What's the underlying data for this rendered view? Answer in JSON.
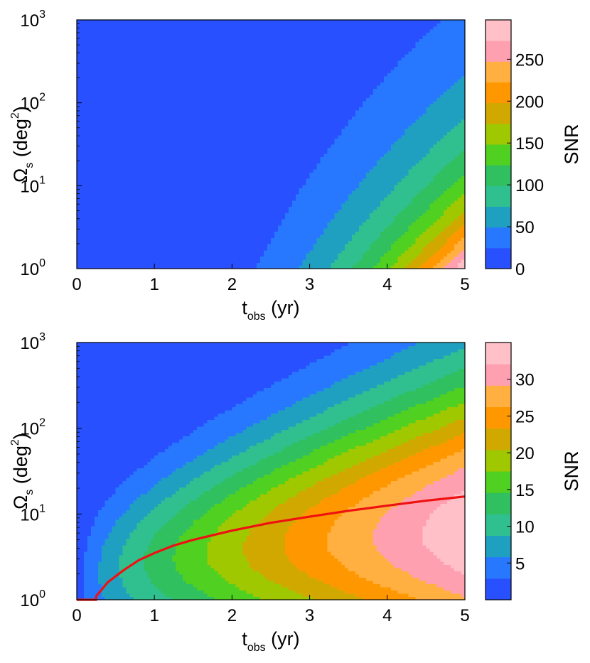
{
  "chart_data": [
    {
      "type": "heatmap",
      "title": "",
      "xlabel": {
        "main": "t",
        "sub": "obs",
        "unit": " (yr)"
      },
      "ylabel": {
        "symbol": "Ω",
        "sub": "s",
        "unit_pre": " (deg",
        "unit_sup": "2",
        "unit_post": ")"
      },
      "x_range": [
        0,
        5
      ],
      "y_range": [
        1,
        1000
      ],
      "y_scale": "log",
      "x_ticks": [
        "0",
        "1",
        "2",
        "3",
        "4",
        "5"
      ],
      "y_ticks": [
        {
          "base": "10",
          "exp": "0"
        },
        {
          "base": "10",
          "exp": "1"
        },
        {
          "base": "10",
          "exp": "2"
        },
        {
          "base": "10",
          "exp": "3"
        }
      ],
      "colorbar": {
        "label": "SNR",
        "min": 0,
        "max": 297,
        "ticks": [
          "0",
          "50",
          "100",
          "150",
          "200",
          "250"
        ],
        "tick_values": [
          0,
          50,
          100,
          150,
          200,
          250
        ]
      },
      "peak_snr": 297,
      "peak_location": {
        "t_obs": 5,
        "omega_s": 1
      },
      "colors": [
        "#2850ff",
        "#2878ff",
        "#20a0c0",
        "#30c090",
        "#30c060",
        "#50d020",
        "#a0c800",
        "#d0a800",
        "#ff9800",
        "#ffb040",
        "#ffa0b0",
        "#ffc0c8"
      ]
    },
    {
      "type": "heatmap",
      "title": "",
      "xlabel": {
        "main": "t",
        "sub": "obs",
        "unit": " (yr)"
      },
      "ylabel": {
        "symbol": "Ω",
        "sub": "s",
        "unit_pre": " (deg",
        "unit_sup": "2",
        "unit_post": ")"
      },
      "x_range": [
        0,
        5
      ],
      "y_range": [
        1,
        1000
      ],
      "y_scale": "log",
      "x_ticks": [
        "0",
        "1",
        "2",
        "3",
        "4",
        "5"
      ],
      "y_ticks": [
        {
          "base": "10",
          "exp": "0"
        },
        {
          "base": "10",
          "exp": "1"
        },
        {
          "base": "10",
          "exp": "2"
        },
        {
          "base": "10",
          "exp": "3"
        }
      ],
      "colorbar": {
        "label": "SNR",
        "min": 0,
        "max": 35,
        "ticks": [
          "5",
          "10",
          "15",
          "20",
          "25",
          "30"
        ],
        "tick_values": [
          5,
          10,
          15,
          20,
          25,
          30
        ]
      },
      "peak_snr": 34.5,
      "peak_location": {
        "t_obs": 5,
        "omega_s": 15
      },
      "colors": [
        "#2850ff",
        "#2878ff",
        "#20a0c0",
        "#30c090",
        "#30c060",
        "#50d020",
        "#a0c800",
        "#d0a800",
        "#ff9800",
        "#ffb040",
        "#ffa0b0",
        "#ffc0c8"
      ],
      "optimal_curve": {
        "color": "#ee1111",
        "t_obs": [
          0.25,
          0.4,
          0.6,
          0.8,
          1.0,
          1.25,
          1.5,
          2.0,
          2.5,
          3.0,
          3.5,
          4.0,
          4.5,
          5.0
        ],
        "omega_s": [
          1.1,
          1.6,
          2.2,
          2.9,
          3.5,
          4.3,
          5.0,
          6.4,
          7.9,
          9.3,
          10.9,
          12.5,
          14.3,
          16.0
        ]
      }
    }
  ]
}
